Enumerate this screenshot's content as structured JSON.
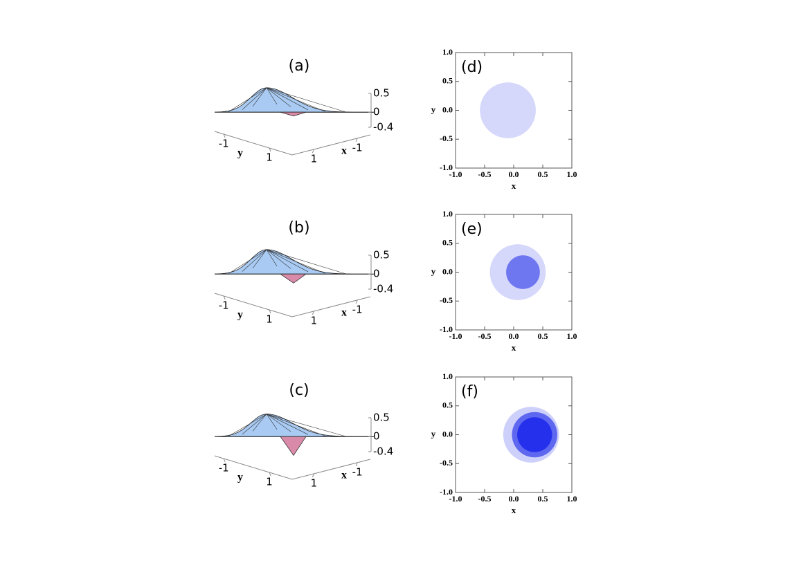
{
  "chart_data": [
    {
      "type": "surface3d",
      "title": "(a)",
      "xlabel": "x",
      "ylabel": "y",
      "peak": 0.65,
      "dip": -0.1,
      "zlim": [
        -0.4,
        0.5
      ],
      "zticks": [
        0.5,
        0,
        -0.4
      ],
      "xlim": [
        2,
        -1.6
      ],
      "xticks": [
        1,
        -1
      ],
      "ylim": [
        -1.4,
        2
      ],
      "yticks": [
        -1,
        1
      ],
      "color": "#a9cbf3",
      "dip_color": "#d98aa8"
    },
    {
      "type": "surface3d",
      "title": "(b)",
      "xlabel": "x",
      "ylabel": "y",
      "peak": 0.65,
      "dip": -0.24,
      "zlim": [
        -0.4,
        0.5
      ],
      "zticks": [
        0.5,
        0,
        -0.4
      ],
      "xlim": [
        2,
        -1.6
      ],
      "xticks": [
        1,
        -1
      ],
      "ylim": [
        -1.4,
        2
      ],
      "yticks": [
        -1,
        1
      ],
      "color": "#a9cbf3",
      "dip_color": "#d98aa8"
    },
    {
      "type": "surface3d",
      "title": "(c)",
      "xlabel": "x",
      "ylabel": "y",
      "peak": 0.6,
      "dip": -0.5,
      "zlim": [
        -0.4,
        0.5
      ],
      "zticks": [
        0.5,
        0,
        -0.4
      ],
      "xlim": [
        2,
        -1.6
      ],
      "xticks": [
        1,
        -1
      ],
      "ylim": [
        -1.4,
        2
      ],
      "yticks": [
        -1,
        1
      ],
      "color": "#a9cbf3",
      "dip_color": "#d98aa8"
    },
    {
      "type": "region",
      "title": "(d)",
      "xlabel": "x",
      "ylabel": "y",
      "xlim": [
        -1,
        1
      ],
      "ylim": [
        -1,
        1
      ],
      "xticks": [
        {
          "value": -1,
          "label": "-1.0"
        },
        {
          "value": -0.5,
          "label": "-0.5"
        },
        {
          "value": 0,
          "label": "0.0"
        },
        {
          "value": 0.5,
          "label": "0.5"
        },
        {
          "value": 1,
          "label": "1.0"
        }
      ],
      "yticks": [
        {
          "value": -1,
          "label": "-1.0"
        },
        {
          "value": -0.5,
          "label": "-0.5"
        },
        {
          "value": 0,
          "label": "0.0"
        },
        {
          "value": 0.5,
          "label": "0.5"
        },
        {
          "value": 1,
          "label": "1.0"
        }
      ],
      "regions": [
        {
          "cx": -0.1,
          "cy": 0,
          "r": 0.48,
          "color": "#d5d7fb"
        }
      ]
    },
    {
      "type": "region",
      "title": "(e)",
      "xlabel": "x",
      "ylabel": "y",
      "xlim": [
        -1,
        1
      ],
      "ylim": [
        -1,
        1
      ],
      "xticks": [
        {
          "value": -1,
          "label": "-1.0"
        },
        {
          "value": -0.5,
          "label": "-0.5"
        },
        {
          "value": 0,
          "label": "0.0"
        },
        {
          "value": 0.5,
          "label": "0.5"
        },
        {
          "value": 1,
          "label": "1.0"
        }
      ],
      "yticks": [
        {
          "value": -1,
          "label": "-1.0"
        },
        {
          "value": -0.5,
          "label": "-0.5"
        },
        {
          "value": 0,
          "label": "0.0"
        },
        {
          "value": 0.5,
          "label": "0.5"
        },
        {
          "value": 1,
          "label": "1.0"
        }
      ],
      "regions": [
        {
          "cx": 0.07,
          "cy": 0,
          "r": 0.48,
          "color": "#d5d7fb"
        },
        {
          "cx": 0.16,
          "cy": 0,
          "r": 0.29,
          "color": "#6f77f0"
        }
      ]
    },
    {
      "type": "region",
      "title": "(f)",
      "xlabel": "x",
      "ylabel": "y",
      "xlim": [
        -1,
        1
      ],
      "ylim": [
        -1,
        1
      ],
      "xticks": [
        {
          "value": -1,
          "label": "-1.0"
        },
        {
          "value": -0.5,
          "label": "-0.5"
        },
        {
          "value": 0,
          "label": "0.0"
        },
        {
          "value": 0.5,
          "label": "0.5"
        },
        {
          "value": 1,
          "label": "1.0"
        }
      ],
      "yticks": [
        {
          "value": -1,
          "label": "-1.0"
        },
        {
          "value": -0.5,
          "label": "-0.5"
        },
        {
          "value": 0,
          "label": "0.0"
        },
        {
          "value": 0.5,
          "label": "0.5"
        },
        {
          "value": 1,
          "label": "1.0"
        }
      ],
      "regions": [
        {
          "cx": 0.3,
          "cy": 0,
          "r": 0.48,
          "color": "#cdd0fa"
        },
        {
          "cx": 0.36,
          "cy": 0,
          "r": 0.39,
          "color": "#5e67ef"
        },
        {
          "cx": 0.36,
          "cy": 0,
          "r": 0.3,
          "color": "#2530ec"
        }
      ]
    }
  ]
}
